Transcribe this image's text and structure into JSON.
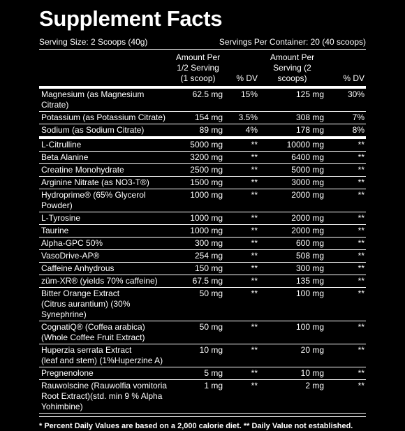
{
  "title": "Supplement Facts",
  "serving_size": "Serving Size: 2 Scoops (40g)",
  "servings_per_container": "Servings Per Container: 20 (40 scoops)",
  "columns": [
    "Amount Per 1/2 Serving (1 scoop)",
    "% DV",
    "Amount Per Serving (2 scoops)",
    "% DV"
  ],
  "minerals": [
    {
      "name": [
        "Magnesium (as Magnesium Citrate)"
      ],
      "amount_half": "62.5 mg",
      "dv_half": "15%",
      "amount_full": "125 mg",
      "dv_full": "30%"
    },
    {
      "name": [
        "Potassium (as Potassium Citrate)"
      ],
      "amount_half": "154 mg",
      "dv_half": "3.5%",
      "amount_full": "308 mg",
      "dv_full": "7%"
    },
    {
      "name": [
        "Sodium (as Sodium Citrate)"
      ],
      "amount_half": "89 mg",
      "dv_half": "4%",
      "amount_full": "178 mg",
      "dv_full": "8%"
    }
  ],
  "ingredients": [
    {
      "name": [
        "L-Citrulline"
      ],
      "amount_half": "5000 mg",
      "dv_half": "**",
      "amount_full": "10000 mg",
      "dv_full": "**"
    },
    {
      "name": [
        "Beta Alanine"
      ],
      "amount_half": "3200 mg",
      "dv_half": "**",
      "amount_full": "6400 mg",
      "dv_full": "**"
    },
    {
      "name": [
        "Creatine Monohydrate"
      ],
      "amount_half": "2500 mg",
      "dv_half": "**",
      "amount_full": "5000 mg",
      "dv_full": "**"
    },
    {
      "name": [
        "Arginine Nitrate (as NO3-T®)"
      ],
      "amount_half": "1500 mg",
      "dv_half": "**",
      "amount_full": "3000 mg",
      "dv_full": "**"
    },
    {
      "name": [
        "Hydroprime® (65% Glycerol Powder)"
      ],
      "amount_half": "1000 mg",
      "dv_half": "**",
      "amount_full": "2000 mg",
      "dv_full": "**"
    },
    {
      "name": [
        "L-Tyrosine"
      ],
      "amount_half": "1000 mg",
      "dv_half": "**",
      "amount_full": "2000 mg",
      "dv_full": "**"
    },
    {
      "name": [
        "Taurine"
      ],
      "amount_half": "1000 mg",
      "dv_half": "**",
      "amount_full": "2000 mg",
      "dv_full": "**"
    },
    {
      "name": [
        "Alpha-GPC 50%"
      ],
      "amount_half": "300 mg",
      "dv_half": "**",
      "amount_full": "600 mg",
      "dv_full": "**"
    },
    {
      "name": [
        "VasoDrive-AP®"
      ],
      "amount_half": "254 mg",
      "dv_half": "**",
      "amount_full": "508 mg",
      "dv_full": "**"
    },
    {
      "name": [
        "Caffeine Anhydrous"
      ],
      "amount_half": "150 mg",
      "dv_half": "**",
      "amount_full": "300 mg",
      "dv_full": "**"
    },
    {
      "name": [
        "züm-XR® (yields 70% caffeine)"
      ],
      "amount_half": "67.5 mg",
      "dv_half": "**",
      "amount_full": "135 mg",
      "dv_full": "**"
    },
    {
      "name": [
        "Bitter Orange Extract",
        "(Citrus aurantium) (30% Synephrine)"
      ],
      "amount_half": "50 mg",
      "dv_half": "**",
      "amount_full": "100 mg",
      "dv_full": "**"
    },
    {
      "name": [
        "CognatiQ® (Coffea arabica)",
        "(Whole Coffee Fruit Extract)"
      ],
      "amount_half": "50 mg",
      "dv_half": "**",
      "amount_full": "100 mg",
      "dv_full": "**"
    },
    {
      "name": [
        "Huperzia serrata Extract",
        "(leaf and stem) (1%Huperzine A)"
      ],
      "amount_half": "10 mg",
      "dv_half": "**",
      "amount_full": "20 mg",
      "dv_full": "**"
    },
    {
      "name": [
        "Pregnenolone"
      ],
      "amount_half": "5 mg",
      "dv_half": "**",
      "amount_full": "10 mg",
      "dv_full": "**"
    },
    {
      "name": [
        "Rauwolscine (Rauwolfia vomitoria",
        "Root Extract)(std. min 9  % Alpha Yohimbine)"
      ],
      "amount_half": "1 mg",
      "dv_half": "**",
      "amount_full": "2 mg",
      "dv_full": "**"
    }
  ],
  "footnote": "* Percent Daily Values are based on a 2,000 calorie diet. ** Daily Value not established."
}
